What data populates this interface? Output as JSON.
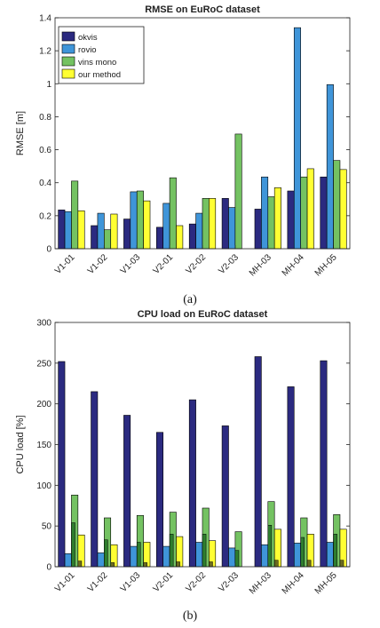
{
  "figure": {
    "caption_a": "(a)",
    "caption_b": "(b)"
  },
  "chart_data": [
    {
      "type": "bar",
      "title": "RMSE on EuRoC dataset",
      "xlabel": "",
      "ylabel": "RMSE [m]",
      "ylim": [
        0,
        1.4
      ],
      "yticks": [
        0,
        0.2,
        0.4,
        0.6,
        0.8,
        1,
        1.2,
        1.4
      ],
      "grid": false,
      "legend_position": "top-left",
      "categories": [
        "V1-01",
        "V1-02",
        "V1-03",
        "V2-01",
        "V2-02",
        "V2-03",
        "MH-03",
        "MH-04",
        "MH-05"
      ],
      "series": [
        {
          "name": "okvis",
          "color": "#2b2a80",
          "values": [
            0.235,
            0.14,
            0.18,
            0.13,
            0.15,
            0.305,
            0.24,
            0.35,
            0.435
          ]
        },
        {
          "name": "rovio",
          "color": "#3f95d9",
          "values": [
            0.225,
            0.215,
            0.345,
            0.275,
            0.215,
            0.25,
            0.435,
            1.34,
            0.995
          ]
        },
        {
          "name": "vins mono",
          "color": "#74c262",
          "values": [
            0.41,
            0.115,
            0.35,
            0.43,
            0.305,
            0.695,
            0.315,
            0.435,
            0.535
          ]
        },
        {
          "name": "our method",
          "color": "#ffff33",
          "values": [
            0.23,
            0.21,
            0.29,
            0.14,
            0.305,
            0.0,
            0.37,
            0.485,
            0.48
          ]
        }
      ]
    },
    {
      "type": "bar",
      "title": "CPU load on EuRoC dataset",
      "xlabel": "",
      "ylabel": "CPU load [%]",
      "ylim": [
        0,
        300
      ],
      "yticks": [
        0,
        50,
        100,
        150,
        200,
        250,
        300
      ],
      "grid": false,
      "categories": [
        "V1-01",
        "V1-02",
        "V1-03",
        "V2-01",
        "V2-02",
        "V2-03",
        "MH-03",
        "MH-04",
        "MH-05"
      ],
      "series": [
        {
          "color": "#2b2a80",
          "values": [
            252,
            215,
            186,
            165,
            205,
            173,
            258,
            221,
            253
          ]
        },
        {
          "color": "#3f95d9",
          "values": [
            16,
            17,
            25,
            25,
            30,
            23,
            27,
            29,
            30
          ]
        },
        {
          "color": "#74c262",
          "values": [
            88,
            60,
            63,
            67,
            72,
            43,
            80,
            60,
            64
          ]
        },
        {
          "color": "#ffff33",
          "values": [
            39,
            27,
            30,
            37,
            32,
            0,
            46,
            40,
            46
          ]
        }
      ],
      "stacked_lower": [
        {
          "color": "#2e7d2e",
          "values": [
            54,
            33,
            30,
            40,
            40,
            20,
            51,
            36,
            40
          ]
        },
        {
          "color": "#6b6b20",
          "values": [
            7,
            5,
            5,
            6,
            6,
            0,
            8,
            8,
            8
          ]
        }
      ]
    }
  ]
}
